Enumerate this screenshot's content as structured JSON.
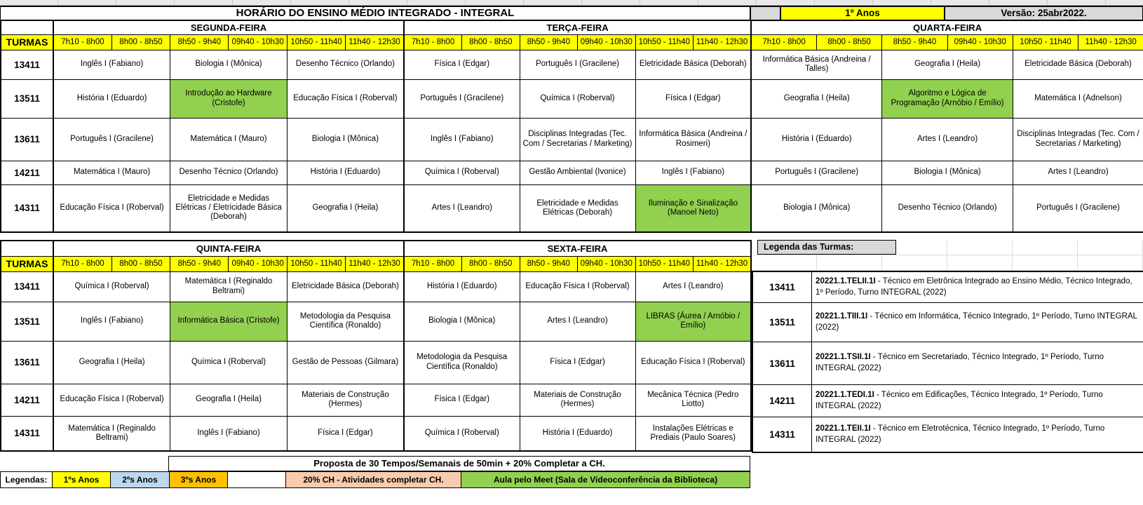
{
  "header": {
    "title": "HORÁRIO DO ENSINO MÉDIO INTEGRADO - INTEGRAL",
    "year_badge": "1º Anos",
    "version": "Versão: 25abr2022."
  },
  "turmas_label": "TURMAS",
  "time_slots": [
    "7h10 - 8h00",
    "8h00 - 8h50",
    "8h50 - 9h40",
    "09h40 - 10h30",
    "10h50 - 11h40",
    "11h40 - 12h30"
  ],
  "table1": {
    "days": [
      "SEGUNDA-FEIRA",
      "TERÇA-FEIRA",
      "QUARTA-FEIRA"
    ],
    "rows": [
      {
        "turma": "13411",
        "subjects": [
          {
            "text": "Inglês I (Fabiano)",
            "meet": false
          },
          {
            "text": "Biologia I (Mônica)",
            "meet": false
          },
          {
            "text": "Desenho Técnico (Orlando)",
            "meet": false
          },
          {
            "text": "Física I (Edgar)",
            "meet": false
          },
          {
            "text": "Português I (Gracilene)",
            "meet": false
          },
          {
            "text": "Eletricidade Básica (Deborah)",
            "meet": false
          },
          {
            "text": "Informática Básica (Andreina / Talles)",
            "meet": false
          },
          {
            "text": "Geografia I (Heila)",
            "meet": false
          },
          {
            "text": "Eletricidade Básica (Deborah)",
            "meet": false
          }
        ]
      },
      {
        "turma": "13511",
        "subjects": [
          {
            "text": "História I (Eduardo)",
            "meet": false
          },
          {
            "text": "Introdução ao Hardware (Cristofe)",
            "meet": true
          },
          {
            "text": "Educação Física I (Roberval)",
            "meet": false
          },
          {
            "text": "Português I (Gracilene)",
            "meet": false
          },
          {
            "text": "Química I (Roberval)",
            "meet": false
          },
          {
            "text": "Física I (Edgar)",
            "meet": false
          },
          {
            "text": "Geografia I (Heila)",
            "meet": false
          },
          {
            "text": "Algoritmo e Lógica de Programação (Arnóbio / Emílio)",
            "meet": true
          },
          {
            "text": "Matemática I (Adnelson)",
            "meet": false
          }
        ]
      },
      {
        "turma": "13611",
        "subjects": [
          {
            "text": "Português I (Gracilene)",
            "meet": false
          },
          {
            "text": "Matemática I (Mauro)",
            "meet": false
          },
          {
            "text": "Biologia I (Mônica)",
            "meet": false
          },
          {
            "text": "Inglês I (Fabiano)",
            "meet": false
          },
          {
            "text": "Disciplinas Integradas (Tec. Com / Secretarias / Marketing)",
            "meet": false
          },
          {
            "text": "Informática Básica (Andreina / Rosimeri)",
            "meet": false
          },
          {
            "text": "História I (Eduardo)",
            "meet": false
          },
          {
            "text": "Artes I (Leandro)",
            "meet": false
          },
          {
            "text": "Disciplinas Integradas (Tec. Com / Secretarias / Marketing)",
            "meet": false
          }
        ]
      },
      {
        "turma": "14211",
        "subjects": [
          {
            "text": "Matemática I (Mauro)",
            "meet": false
          },
          {
            "text": "Desenho Técnico (Orlando)",
            "meet": false
          },
          {
            "text": "História I (Eduardo)",
            "meet": false
          },
          {
            "text": "Química I (Roberval)",
            "meet": false
          },
          {
            "text": "Gestão Ambiental (Ivonice)",
            "meet": false
          },
          {
            "text": "Inglês I (Fabiano)",
            "meet": false
          },
          {
            "text": "Português I (Gracilene)",
            "meet": false
          },
          {
            "text": "Biologia I (Mônica)",
            "meet": false
          },
          {
            "text": "Artes I (Leandro)",
            "meet": false
          }
        ]
      },
      {
        "turma": "14311",
        "subjects": [
          {
            "text": "Educação Física I (Roberval)",
            "meet": false
          },
          {
            "text": "Eletricidade e Medidas Elétricas / Eletricidade Básica (Deborah)",
            "meet": false
          },
          {
            "text": "Geografia I (Heila)",
            "meet": false
          },
          {
            "text": "Artes I (Leandro)",
            "meet": false
          },
          {
            "text": "Eletricidade e Medidas Elétricas (Deborah)",
            "meet": false
          },
          {
            "text": "Iluminação e Sinalização (Manoel Neto)",
            "meet": true
          },
          {
            "text": "Biologia I (Mônica)",
            "meet": false
          },
          {
            "text": "Desenho Técnico (Orlando)",
            "meet": false
          },
          {
            "text": "Português I (Gracilene)",
            "meet": false
          }
        ]
      }
    ]
  },
  "table2": {
    "days": [
      "QUINTA-FEIRA",
      "SEXTA-FEIRA"
    ],
    "rows": [
      {
        "turma": "13411",
        "subjects": [
          {
            "text": "Química I (Roberval)",
            "meet": false
          },
          {
            "text": "Matemática I (Reginaldo Beltrami)",
            "meet": false
          },
          {
            "text": "Eletricidade Básica (Deborah)",
            "meet": false
          },
          {
            "text": "História I (Eduardo)",
            "meet": false
          },
          {
            "text": "Educação Física I (Roberval)",
            "meet": false
          },
          {
            "text": "Artes I (Leandro)",
            "meet": false
          }
        ]
      },
      {
        "turma": "13511",
        "subjects": [
          {
            "text": "Inglês I (Fabiano)",
            "meet": false
          },
          {
            "text": "Informática Básica (Cristofe)",
            "meet": true
          },
          {
            "text": "Metodologia da Pesquisa Científica (Ronaldo)",
            "meet": false
          },
          {
            "text": "Biologia I (Mônica)",
            "meet": false
          },
          {
            "text": "Artes I (Leandro)",
            "meet": false
          },
          {
            "text": "LIBRAS (Áurea / Arnóbio / Emílio)",
            "meet": true
          }
        ]
      },
      {
        "turma": "13611",
        "subjects": [
          {
            "text": "Geografia I (Heila)",
            "meet": false
          },
          {
            "text": "Química I (Roberval)",
            "meet": false
          },
          {
            "text": "Gestão de Pessoas (Gilmara)",
            "meet": false
          },
          {
            "text": "Metodologia da Pesquisa Científica (Ronaldo)",
            "meet": false
          },
          {
            "text": "Física I (Edgar)",
            "meet": false
          },
          {
            "text": "Educação Física I (Roberval)",
            "meet": false
          }
        ]
      },
      {
        "turma": "14211",
        "subjects": [
          {
            "text": "Educação Física I (Roberval)",
            "meet": false
          },
          {
            "text": "Geografia I (Heila)",
            "meet": false
          },
          {
            "text": "Materiais de Construção (Hermes)",
            "meet": false
          },
          {
            "text": "Física I (Edgar)",
            "meet": false
          },
          {
            "text": "Materiais de Construção (Hermes)",
            "meet": false
          },
          {
            "text": "Mecânica Técnica (Pedro Liotto)",
            "meet": false
          }
        ]
      },
      {
        "turma": "14311",
        "subjects": [
          {
            "text": "Matemática I (Reginaldo Beltrami)",
            "meet": false
          },
          {
            "text": "Inglês I (Fabiano)",
            "meet": false
          },
          {
            "text": "Física I (Edgar)",
            "meet": false
          },
          {
            "text": "Química I (Roberval)",
            "meet": false
          },
          {
            "text": "História I (Eduardo)",
            "meet": false
          },
          {
            "text": "Instalações Elétricas e Prediais (Paulo Soares)",
            "meet": false
          }
        ]
      }
    ]
  },
  "turma_legend": {
    "title": "Legenda das Turmas:",
    "items": [
      {
        "turma": "13411",
        "code": "20221.1.TELII.1I",
        "desc": "Técnico em Eletrônica Integrado ao Ensino Médio, Técnico Integrado, 1º Período, Turno INTEGRAL (2022)"
      },
      {
        "turma": "13511",
        "code": "20221.1.TIII.1I",
        "desc": "Técnico em Informática, Técnico Integrado, 1º Período, Turno INTEGRAL (2022)"
      },
      {
        "turma": "13611",
        "code": "20221.1.TSII.1I",
        "desc": "Técnico em Secretariado, Técnico Integrado, 1º Período, Turno INTEGRAL (2022)"
      },
      {
        "turma": "14211",
        "code": "20221.1.TEDI.1I",
        "desc": "Técnico em Edificações, Técnico Integrado, 1º Período, Turno INTEGRAL (2022)"
      },
      {
        "turma": "14311",
        "code": "20221.1.TEII.1I",
        "desc": "Técnico em Eletrotécnica, Técnico Integrado, 1º Período, Turno INTEGRAL (2022)"
      }
    ]
  },
  "footer": {
    "proposal": "Proposta de 30 Tempos/Semanais de 50min + 20% Completar a CH.",
    "legend_label": "Legendas:",
    "legend_items": [
      {
        "label": "1ºs Anos",
        "color": "#FFFF00"
      },
      {
        "label": "2ºs Anos",
        "color": "#BDD7EE"
      },
      {
        "label": "3ºs Anos",
        "color": "#FFC000"
      },
      {
        "label": "20% CH - Atividades completar CH.",
        "color": "#F8CBAD"
      },
      {
        "label": "Aula pelo Meet (Sala de Videoconferência da Biblioteca)",
        "color": "#92D050"
      }
    ]
  },
  "colors": {
    "slot_header": "#FFFF00",
    "meet_highlight": "#92D050",
    "header_gray": "#D9D9D9"
  }
}
